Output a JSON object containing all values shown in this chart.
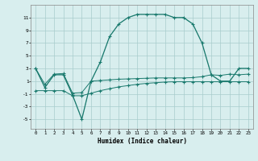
{
  "xlabel": "Humidex (Indice chaleur)",
  "x": [
    0,
    1,
    2,
    3,
    4,
    5,
    6,
    7,
    8,
    9,
    10,
    11,
    12,
    13,
    14,
    15,
    16,
    17,
    18,
    19,
    20,
    21,
    22,
    23
  ],
  "y_main": [
    3,
    0,
    2,
    2,
    -1.2,
    -5,
    1,
    4,
    8,
    10,
    11,
    11.5,
    11.5,
    11.5,
    11.5,
    11,
    11,
    10,
    7,
    2,
    1,
    1,
    3,
    3
  ],
  "y_upper_flat": [
    3,
    0.5,
    2.1,
    2.2,
    -0.9,
    -0.8,
    1.0,
    1.1,
    1.2,
    1.3,
    1.35,
    1.4,
    1.45,
    1.5,
    1.5,
    1.5,
    1.5,
    1.55,
    1.7,
    2.0,
    1.9,
    2.1,
    2.0,
    2.1
  ],
  "y_lower_flat": [
    -0.5,
    -0.5,
    -0.5,
    -0.5,
    -1.3,
    -1.3,
    -0.9,
    -0.5,
    -0.2,
    0.1,
    0.3,
    0.5,
    0.65,
    0.75,
    0.85,
    0.9,
    0.9,
    0.9,
    0.9,
    0.9,
    0.9,
    0.9,
    0.9,
    0.9
  ],
  "ylim": [
    -6.5,
    13.0
  ],
  "yticks": [
    -5,
    -3,
    -1,
    1,
    3,
    5,
    7,
    9,
    11
  ],
  "bg_color": "#d8eeee",
  "line_color": "#1a7a6e",
  "grid_color": "#a8cccc"
}
